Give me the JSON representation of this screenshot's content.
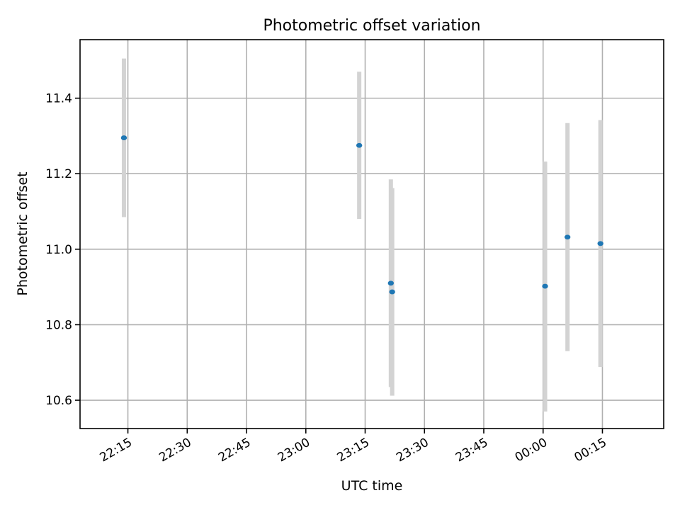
{
  "colors": {
    "point": "#1f77b4",
    "errorbar": "#d3d3d3",
    "grid": "#b0b0b0",
    "axes": "#000000"
  },
  "chart_data": {
    "type": "scatter",
    "title": "Photometric offset variation",
    "xlabel": "UTC time",
    "ylabel": "Photometric offset",
    "grid": true,
    "x_axis": {
      "type": "time",
      "range": [
        "22:02:54",
        "00:30:30"
      ],
      "ticks": [
        {
          "t": "22:15",
          "label": "22:15"
        },
        {
          "t": "22:30",
          "label": "22:30"
        },
        {
          "t": "22:45",
          "label": "22:45"
        },
        {
          "t": "23:00",
          "label": "23:00"
        },
        {
          "t": "23:15",
          "label": "23:15"
        },
        {
          "t": "23:30",
          "label": "23:30"
        },
        {
          "t": "23:45",
          "label": "23:45"
        },
        {
          "t": "00:00",
          "label": "00:00"
        },
        {
          "t": "00:15",
          "label": "00:15"
        }
      ],
      "tick_label_rotation": 30
    },
    "y_axis": {
      "range": [
        10.525,
        11.555
      ],
      "ticks": [
        10.6,
        10.8,
        11.0,
        11.2,
        11.4
      ],
      "tick_labels": [
        "10.6",
        "10.8",
        "11.0",
        "11.2",
        "11.4"
      ]
    },
    "points": [
      {
        "x": "22:14:00",
        "y": 11.295,
        "yerr_low": 11.085,
        "yerr_high": 11.505
      },
      {
        "x": "23:13:30",
        "y": 11.275,
        "yerr_low": 11.08,
        "yerr_high": 11.47
      },
      {
        "x": "23:21:30",
        "y": 10.91,
        "yerr_low": 10.635,
        "yerr_high": 11.185
      },
      {
        "x": "23:21:50",
        "y": 10.887,
        "yerr_low": 10.612,
        "yerr_high": 11.162
      },
      {
        "x": "00:00:30",
        "y": 10.902,
        "yerr_low": 10.57,
        "yerr_high": 11.232
      },
      {
        "x": "00:06:10",
        "y": 11.032,
        "yerr_low": 10.73,
        "yerr_high": 11.334
      },
      {
        "x": "00:14:30",
        "y": 11.015,
        "yerr_low": 10.688,
        "yerr_high": 11.342
      }
    ]
  }
}
